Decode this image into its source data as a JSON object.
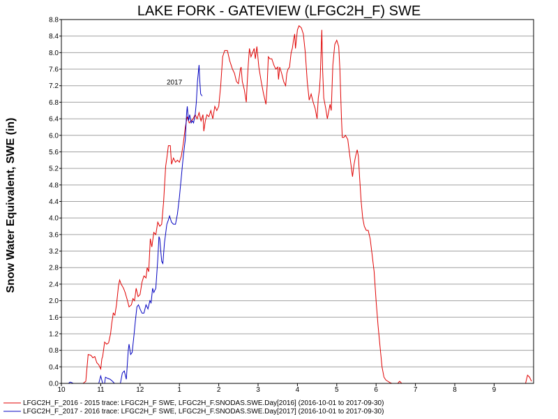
{
  "chart_data": {
    "type": "line",
    "title": "LAKE FORK - GATEVIEW (LFGC2H_F) SWE",
    "ylabel": "Snow Water Equivalent, SWE (in)",
    "xlabel": "",
    "ylim": [
      0,
      8.8
    ],
    "ytick_step": 0.4,
    "grid": "horizontal",
    "x_axis": {
      "range_months": [
        10,
        20
      ],
      "tick_labels": [
        {
          "pos": 10,
          "label": "10"
        },
        {
          "pos": 11,
          "label": "11"
        },
        {
          "pos": 12,
          "label": "12"
        },
        {
          "pos": 13,
          "label": "1"
        },
        {
          "pos": 14,
          "label": "2"
        },
        {
          "pos": 15,
          "label": "3"
        },
        {
          "pos": 16,
          "label": "4"
        },
        {
          "pos": 17,
          "label": "5"
        },
        {
          "pos": 18,
          "label": "6"
        },
        {
          "pos": 19,
          "label": "7"
        },
        {
          "pos": 20,
          "label": "8"
        },
        {
          "pos": 21,
          "label": "9"
        }
      ],
      "year_label": {
        "pos": 13,
        "label": "2017"
      },
      "end": 21.95
    },
    "legend_position": "bottom-left",
    "series": [
      {
        "name": "LFGC2H_F_2016 - 2015 trace: LFGC2H_F SWE, LFGC2H_F.SNODAS.SWE.Day[2016] (2016-10-01 to 2017-09-30)",
        "color": "#e00000",
        "points": [
          [
            10.55,
            0.0
          ],
          [
            10.62,
            0.05
          ],
          [
            10.68,
            0.7
          ],
          [
            10.75,
            0.68
          ],
          [
            10.8,
            0.62
          ],
          [
            10.85,
            0.65
          ],
          [
            10.9,
            0.5
          ],
          [
            10.95,
            0.45
          ],
          [
            11.0,
            0.35
          ],
          [
            11.03,
            0.6
          ],
          [
            11.05,
            0.65
          ],
          [
            11.1,
            1.0
          ],
          [
            11.15,
            0.95
          ],
          [
            11.2,
            0.98
          ],
          [
            11.25,
            1.2
          ],
          [
            11.28,
            1.45
          ],
          [
            11.32,
            1.7
          ],
          [
            11.36,
            1.65
          ],
          [
            11.4,
            1.9
          ],
          [
            11.45,
            2.35
          ],
          [
            11.48,
            2.5
          ],
          [
            11.52,
            2.4
          ],
          [
            11.58,
            2.3
          ],
          [
            11.62,
            2.2
          ],
          [
            11.68,
            2.0
          ],
          [
            11.72,
            1.85
          ],
          [
            11.78,
            1.9
          ],
          [
            11.82,
            2.05
          ],
          [
            11.86,
            2.0
          ],
          [
            11.9,
            2.3
          ],
          [
            11.95,
            2.1
          ],
          [
            12.0,
            2.15
          ],
          [
            12.05,
            2.45
          ],
          [
            12.1,
            2.6
          ],
          [
            12.15,
            2.55
          ],
          [
            12.18,
            2.8
          ],
          [
            12.22,
            2.7
          ],
          [
            12.26,
            3.5
          ],
          [
            12.3,
            3.3
          ],
          [
            12.35,
            3.65
          ],
          [
            12.4,
            3.6
          ],
          [
            12.45,
            3.9
          ],
          [
            12.5,
            3.8
          ],
          [
            12.55,
            3.85
          ],
          [
            12.6,
            4.4
          ],
          [
            12.65,
            5.25
          ],
          [
            12.68,
            5.45
          ],
          [
            12.72,
            5.75
          ],
          [
            12.77,
            5.75
          ],
          [
            12.8,
            5.3
          ],
          [
            12.85,
            5.45
          ],
          [
            12.9,
            5.35
          ],
          [
            12.95,
            5.4
          ],
          [
            13.0,
            5.35
          ],
          [
            13.05,
            5.5
          ],
          [
            13.1,
            5.8
          ],
          [
            13.15,
            6.2
          ],
          [
            13.2,
            6.45
          ],
          [
            13.25,
            6.3
          ],
          [
            13.3,
            6.35
          ],
          [
            13.35,
            6.4
          ],
          [
            13.4,
            6.5
          ],
          [
            13.45,
            6.4
          ],
          [
            13.5,
            6.55
          ],
          [
            13.55,
            6.35
          ],
          [
            13.6,
            6.5
          ],
          [
            13.62,
            6.1
          ],
          [
            13.66,
            6.35
          ],
          [
            13.7,
            6.5
          ],
          [
            13.75,
            6.45
          ],
          [
            13.8,
            6.6
          ],
          [
            13.85,
            6.4
          ],
          [
            13.9,
            6.7
          ],
          [
            13.95,
            6.6
          ],
          [
            14.0,
            6.7
          ],
          [
            14.05,
            7.2
          ],
          [
            14.1,
            7.9
          ],
          [
            14.15,
            8.05
          ],
          [
            14.22,
            8.05
          ],
          [
            14.28,
            7.8
          ],
          [
            14.35,
            7.6
          ],
          [
            14.4,
            7.5
          ],
          [
            14.45,
            7.3
          ],
          [
            14.5,
            7.25
          ],
          [
            14.55,
            7.6
          ],
          [
            14.57,
            7.65
          ],
          [
            14.6,
            7.3
          ],
          [
            14.65,
            7.1
          ],
          [
            14.7,
            6.8
          ],
          [
            14.72,
            7.2
          ],
          [
            14.75,
            7.7
          ],
          [
            14.78,
            8.1
          ],
          [
            14.82,
            7.9
          ],
          [
            14.86,
            8.0
          ],
          [
            14.9,
            8.1
          ],
          [
            14.93,
            7.85
          ],
          [
            14.97,
            8.15
          ],
          [
            15.02,
            7.65
          ],
          [
            15.08,
            7.3
          ],
          [
            15.14,
            7.0
          ],
          [
            15.2,
            6.75
          ],
          [
            15.23,
            7.2
          ],
          [
            15.26,
            7.9
          ],
          [
            15.3,
            7.85
          ],
          [
            15.35,
            7.85
          ],
          [
            15.4,
            7.7
          ],
          [
            15.45,
            7.6
          ],
          [
            15.5,
            7.65
          ],
          [
            15.52,
            7.35
          ],
          [
            15.55,
            7.65
          ],
          [
            15.6,
            7.5
          ],
          [
            15.65,
            7.3
          ],
          [
            15.7,
            7.2
          ],
          [
            15.73,
            7.5
          ],
          [
            15.76,
            7.6
          ],
          [
            15.8,
            7.65
          ],
          [
            15.84,
            8.0
          ],
          [
            15.87,
            8.1
          ],
          [
            15.9,
            8.3
          ],
          [
            15.93,
            8.45
          ],
          [
            15.95,
            8.1
          ],
          [
            16.0,
            8.55
          ],
          [
            16.04,
            8.65
          ],
          [
            16.1,
            8.6
          ],
          [
            16.15,
            8.45
          ],
          [
            16.2,
            8.0
          ],
          [
            16.25,
            7.3
          ],
          [
            16.3,
            6.85
          ],
          [
            16.35,
            7.0
          ],
          [
            16.4,
            6.8
          ],
          [
            16.45,
            6.65
          ],
          [
            16.5,
            6.4
          ],
          [
            16.53,
            6.9
          ],
          [
            16.56,
            7.1
          ],
          [
            16.58,
            7.4
          ],
          [
            16.62,
            8.55
          ],
          [
            16.64,
            7.6
          ],
          [
            16.67,
            6.9
          ],
          [
            16.72,
            6.65
          ],
          [
            16.76,
            6.4
          ],
          [
            16.8,
            6.6
          ],
          [
            16.83,
            6.75
          ],
          [
            16.86,
            6.6
          ],
          [
            16.9,
            7.7
          ],
          [
            16.95,
            8.2
          ],
          [
            17.0,
            8.3
          ],
          [
            17.05,
            8.15
          ],
          [
            17.08,
            7.6
          ],
          [
            17.1,
            7.0
          ],
          [
            17.12,
            6.4
          ],
          [
            17.14,
            5.95
          ],
          [
            17.18,
            5.95
          ],
          [
            17.22,
            6.0
          ],
          [
            17.28,
            5.9
          ],
          [
            17.32,
            5.6
          ],
          [
            17.36,
            5.3
          ],
          [
            17.4,
            5.0
          ],
          [
            17.44,
            5.3
          ],
          [
            17.48,
            5.5
          ],
          [
            17.52,
            5.65
          ],
          [
            17.55,
            5.5
          ],
          [
            17.58,
            5.0
          ],
          [
            17.62,
            4.4
          ],
          [
            17.66,
            4.0
          ],
          [
            17.7,
            3.8
          ],
          [
            17.75,
            3.7
          ],
          [
            17.8,
            3.7
          ],
          [
            17.85,
            3.5
          ],
          [
            17.9,
            3.1
          ],
          [
            17.95,
            2.7
          ],
          [
            18.0,
            2.0
          ],
          [
            18.05,
            1.4
          ],
          [
            18.1,
            0.9
          ],
          [
            18.15,
            0.4
          ],
          [
            18.2,
            0.15
          ],
          [
            18.25,
            0.08
          ],
          [
            18.3,
            0.05
          ],
          [
            18.35,
            0.02
          ],
          [
            18.4,
            0.0
          ],
          [
            18.45,
            0.0
          ],
          [
            18.55,
            0.0
          ],
          [
            18.6,
            0.05
          ],
          [
            18.65,
            0.0
          ],
          [
            21.8,
            0.0
          ],
          [
            21.85,
            0.2
          ],
          [
            21.9,
            0.15
          ],
          [
            21.95,
            0.05
          ]
        ]
      },
      {
        "name": "LFGC2H_F_2017 - 2016 trace: LFGC2H_F SWE, LFGC2H_F.SNODAS.SWE.Day[2017] (2016-10-01 to 2017-09-30)",
        "color": "#0000c0",
        "points": [
          [
            10.18,
            0.0
          ],
          [
            10.22,
            0.03
          ],
          [
            10.26,
            0.02
          ],
          [
            10.3,
            0.0
          ],
          [
            10.95,
            0.0
          ],
          [
            11.0,
            0.18
          ],
          [
            11.05,
            0.0
          ],
          [
            11.1,
            0.0
          ],
          [
            11.12,
            0.15
          ],
          [
            11.18,
            0.12
          ],
          [
            11.24,
            0.1
          ],
          [
            11.3,
            0.05
          ],
          [
            11.35,
            0.0
          ],
          [
            11.5,
            0.0
          ],
          [
            11.55,
            0.25
          ],
          [
            11.6,
            0.3
          ],
          [
            11.65,
            0.1
          ],
          [
            11.7,
            0.8
          ],
          [
            11.72,
            0.95
          ],
          [
            11.76,
            0.7
          ],
          [
            11.8,
            0.75
          ],
          [
            11.85,
            1.2
          ],
          [
            11.88,
            1.5
          ],
          [
            11.92,
            1.85
          ],
          [
            11.96,
            1.9
          ],
          [
            12.0,
            1.8
          ],
          [
            12.05,
            1.7
          ],
          [
            12.1,
            1.7
          ],
          [
            12.15,
            1.9
          ],
          [
            12.2,
            1.8
          ],
          [
            12.25,
            2.0
          ],
          [
            12.28,
            1.95
          ],
          [
            12.32,
            2.3
          ],
          [
            12.35,
            2.2
          ],
          [
            12.4,
            2.3
          ],
          [
            12.45,
            3.0
          ],
          [
            12.48,
            3.55
          ],
          [
            12.5,
            3.5
          ],
          [
            12.55,
            2.95
          ],
          [
            12.58,
            2.9
          ],
          [
            12.62,
            3.4
          ],
          [
            12.68,
            3.85
          ],
          [
            12.72,
            3.95
          ],
          [
            12.75,
            4.05
          ],
          [
            12.8,
            3.9
          ],
          [
            12.85,
            3.85
          ],
          [
            12.9,
            3.85
          ],
          [
            12.95,
            4.1
          ],
          [
            13.0,
            4.5
          ],
          [
            13.05,
            5.0
          ],
          [
            13.1,
            5.5
          ],
          [
            13.15,
            5.9
          ],
          [
            13.18,
            6.5
          ],
          [
            13.2,
            6.7
          ],
          [
            13.23,
            6.35
          ],
          [
            13.26,
            6.5
          ],
          [
            13.3,
            6.3
          ],
          [
            13.33,
            6.35
          ],
          [
            13.36,
            6.3
          ],
          [
            13.4,
            6.5
          ],
          [
            13.43,
            6.8
          ],
          [
            13.46,
            7.3
          ],
          [
            13.5,
            7.7
          ],
          [
            13.52,
            7.3
          ],
          [
            13.54,
            7.0
          ],
          [
            13.58,
            6.95
          ]
        ]
      }
    ]
  }
}
